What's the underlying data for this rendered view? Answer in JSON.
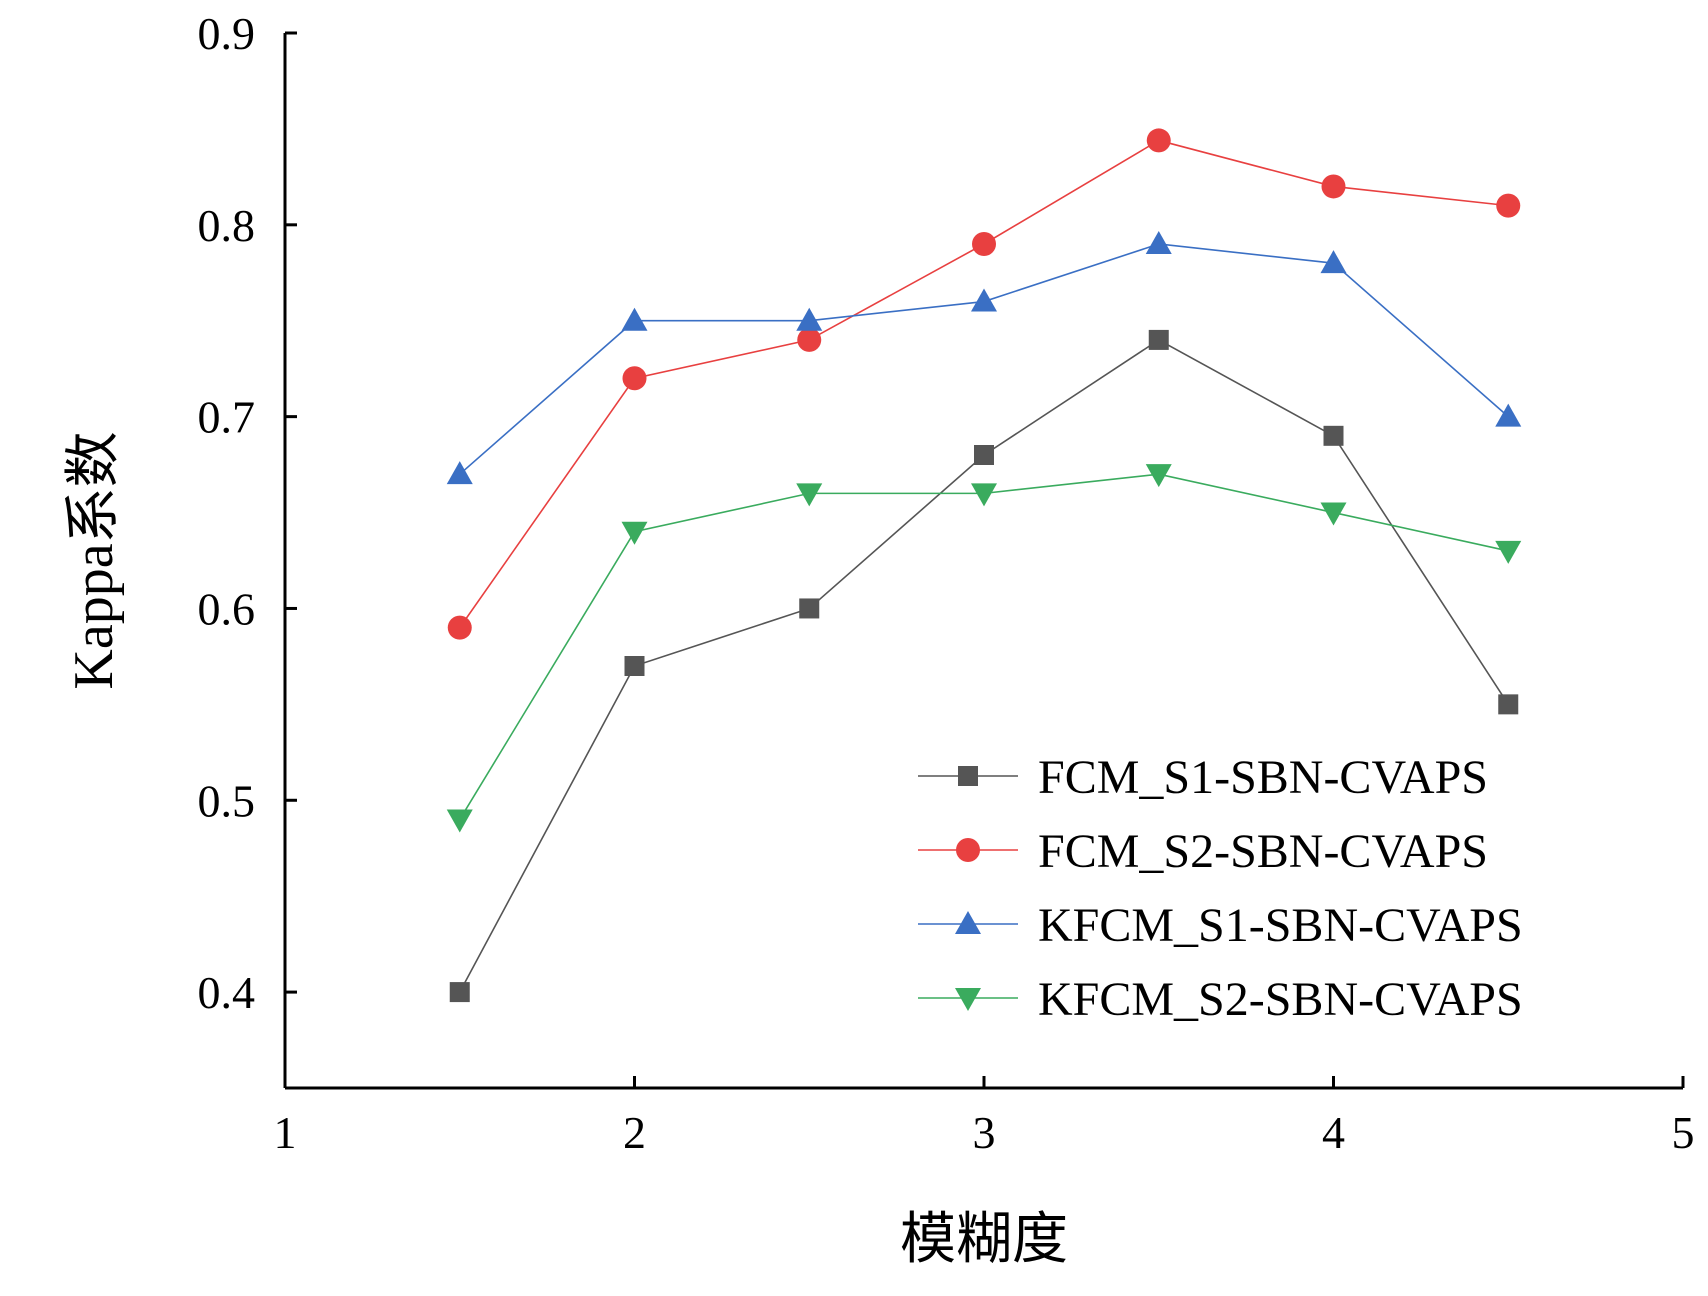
{
  "chart_data": {
    "type": "line",
    "title": "",
    "xlabel": "模糊度",
    "ylabel": "Kappa系数",
    "xlim": [
      1,
      5
    ],
    "ylim": [
      0.35,
      0.9
    ],
    "xticks": [
      "1",
      "2",
      "3",
      "4",
      "5"
    ],
    "yticks": [
      "0.4",
      "0.5",
      "0.6",
      "0.7",
      "0.8",
      "0.9"
    ],
    "x": [
      1.5,
      2,
      2.5,
      3,
      3.5,
      4,
      4.5
    ],
    "grid": false,
    "legend_position": "bottom-right",
    "series": [
      {
        "name": "FCM_S1-SBN-CVAPS",
        "color": "#555555",
        "marker": "square",
        "values": [
          0.4,
          0.57,
          0.6,
          0.68,
          0.74,
          0.69,
          0.55
        ]
      },
      {
        "name": "FCM_S2-SBN-CVAPS",
        "color": "#e84040",
        "marker": "circle",
        "values": [
          0.59,
          0.72,
          0.74,
          0.79,
          0.844,
          0.82,
          0.81
        ]
      },
      {
        "name": "KFCM_S1-SBN-CVAPS",
        "color": "#3a6fc4",
        "marker": "triangle-up",
        "values": [
          0.67,
          0.75,
          0.75,
          0.76,
          0.79,
          0.78,
          0.7
        ]
      },
      {
        "name": "KFCM_S2-SBN-CVAPS",
        "color": "#3aab5e",
        "marker": "triangle-down",
        "values": [
          0.49,
          0.64,
          0.66,
          0.66,
          0.67,
          0.65,
          0.63
        ]
      }
    ]
  }
}
